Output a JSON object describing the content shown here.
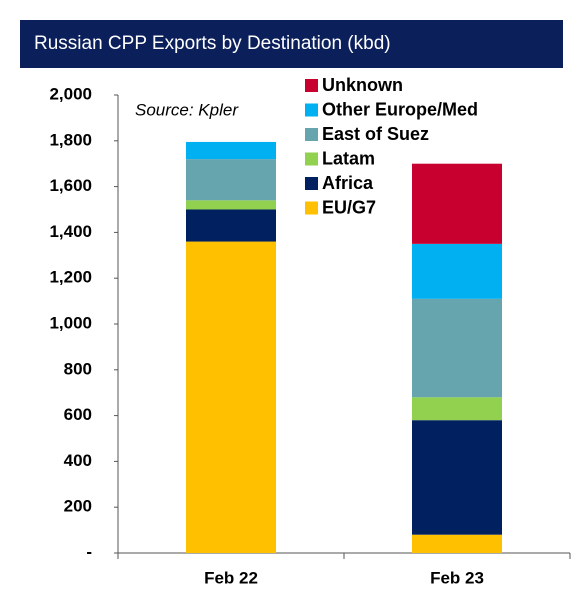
{
  "chart_data": {
    "type": "stacked-bar",
    "title": "Russian CPP Exports by Destination (kbd)",
    "annotation": "Source: Kpler",
    "categories": [
      "Feb 22",
      "Feb 23"
    ],
    "series": [
      {
        "name": "EU/G7",
        "color": "#ffc000",
        "values": [
          1360,
          80
        ]
      },
      {
        "name": "Africa",
        "color": "#002060",
        "values": [
          140,
          500
        ]
      },
      {
        "name": "Latam",
        "color": "#92d050",
        "values": [
          40,
          100
        ]
      },
      {
        "name": "East of Suez",
        "color": "#66a5ae",
        "values": [
          180,
          430
        ]
      },
      {
        "name": "Other Europe/Med",
        "color": "#00b0f0",
        "values": [
          75,
          240
        ]
      },
      {
        "name": "Unknown",
        "color": "#c8002f",
        "values": [
          0,
          350
        ]
      }
    ],
    "ylim": [
      0,
      2000
    ],
    "yticks": [
      {
        "value": 0,
        "label": "-"
      },
      200,
      400,
      600,
      800,
      {
        "value": 1000,
        "label": "1,000"
      },
      {
        "value": 1200,
        "label": "1,200"
      },
      {
        "value": 1400,
        "label": "1,400"
      },
      {
        "value": 1600,
        "label": "1,600"
      },
      {
        "value": 1800,
        "label": "1,800"
      },
      {
        "value": 2000,
        "label": "2,000"
      }
    ],
    "legend": "top-right"
  }
}
